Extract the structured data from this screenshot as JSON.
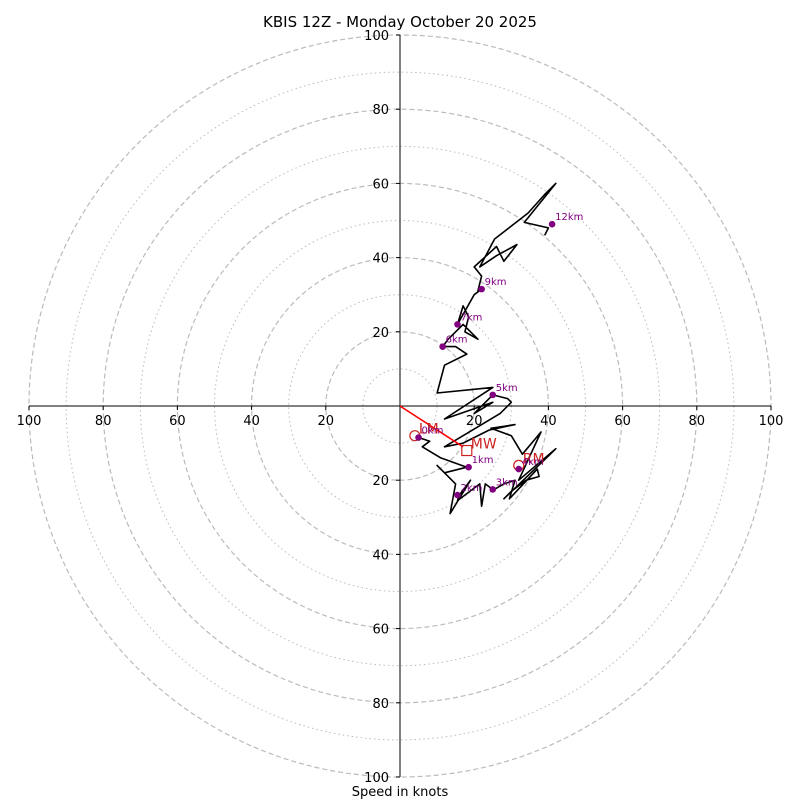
{
  "chart_data": {
    "type": "hodograph",
    "title": "KBIS 12Z - Monday October 20 2025",
    "xlabel": "Speed in knots",
    "units": "knots",
    "range": [
      -100,
      100
    ],
    "rings_major": [
      20,
      40,
      60,
      80,
      100
    ],
    "rings_minor": [
      10,
      30,
      50,
      70,
      90
    ],
    "x_ticks": [
      {
        "label": "100",
        "value": -100
      },
      {
        "label": "80",
        "value": -80
      },
      {
        "label": "60",
        "value": -60
      },
      {
        "label": "40",
        "value": -40
      },
      {
        "label": "20",
        "value": -20
      },
      {
        "label": "20",
        "value": 20
      },
      {
        "label": "40",
        "value": 40
      },
      {
        "label": "60",
        "value": 60
      },
      {
        "label": "80",
        "value": 80
      },
      {
        "label": "100",
        "value": 100
      }
    ],
    "y_ticks": [
      {
        "label": "100",
        "value": 100
      },
      {
        "label": "80",
        "value": 80
      },
      {
        "label": "60",
        "value": 60
      },
      {
        "label": "40",
        "value": 40
      },
      {
        "label": "20",
        "value": 20
      },
      {
        "label": "20",
        "value": -20
      },
      {
        "label": "40",
        "value": -40
      },
      {
        "label": "60",
        "value": -60
      },
      {
        "label": "80",
        "value": -80
      },
      {
        "label": "100",
        "value": -100
      }
    ],
    "colors": {
      "hodo": "#000000",
      "heights": "#800080",
      "motion": "#cc2222",
      "shear": "#ff0000",
      "grid": "#bbbbbb"
    },
    "hodograph": [
      [
        5,
        -8.5
      ],
      [
        8,
        -9.5
      ],
      [
        6,
        -11
      ],
      [
        11,
        -14
      ],
      [
        18,
        -16.5
      ],
      [
        12,
        -18
      ],
      [
        10,
        -16
      ],
      [
        15,
        -21
      ],
      [
        13.5,
        -29
      ],
      [
        19,
        -20
      ],
      [
        16,
        -24
      ],
      [
        15.5,
        -25.5
      ],
      [
        21.5,
        -21
      ],
      [
        22,
        -27
      ],
      [
        23,
        -21
      ],
      [
        25,
        -22.5
      ],
      [
        24.5,
        -23
      ],
      [
        28,
        -21
      ],
      [
        31,
        -20
      ],
      [
        29.5,
        -25
      ],
      [
        37,
        -17
      ],
      [
        37.5,
        -19
      ],
      [
        34,
        -20
      ],
      [
        30,
        -23
      ],
      [
        28,
        -25
      ],
      [
        40.5,
        -13
      ],
      [
        42,
        -11.5
      ],
      [
        32,
        -20
      ],
      [
        38,
        -7
      ],
      [
        33,
        -13
      ],
      [
        30,
        -8
      ],
      [
        24.5,
        -6
      ],
      [
        31,
        -5
      ],
      [
        24,
        -6.5
      ],
      [
        17,
        -10
      ],
      [
        12,
        -11
      ],
      [
        27,
        -2
      ],
      [
        30,
        1
      ],
      [
        29,
        2
      ],
      [
        25,
        3
      ],
      [
        20,
        -2
      ],
      [
        25,
        1
      ],
      [
        12,
        -3.5
      ],
      [
        25,
        5
      ],
      [
        10,
        3.5
      ],
      [
        12,
        11
      ],
      [
        18,
        14
      ],
      [
        15,
        16
      ],
      [
        11.5,
        16
      ],
      [
        13,
        18
      ],
      [
        17,
        22
      ],
      [
        18,
        21
      ],
      [
        21,
        18
      ],
      [
        17.5,
        20
      ],
      [
        18.5,
        24
      ],
      [
        17,
        27
      ],
      [
        15.5,
        22
      ],
      [
        20,
        30
      ],
      [
        22,
        31.5
      ],
      [
        21,
        31
      ],
      [
        22,
        35
      ],
      [
        20,
        37.5
      ],
      [
        26,
        43
      ],
      [
        28,
        39
      ],
      [
        31.5,
        43.5
      ],
      [
        26,
        40.5
      ],
      [
        21.5,
        37.5
      ],
      [
        25.5,
        45
      ],
      [
        34.5,
        52
      ],
      [
        39,
        57
      ],
      [
        42,
        60
      ],
      [
        33.5,
        49.5
      ],
      [
        40,
        48
      ],
      [
        39,
        46
      ]
    ],
    "height_markers": [
      {
        "label": "0km",
        "u": 5,
        "v": -8.5
      },
      {
        "label": "1km",
        "u": 18.5,
        "v": -16.5
      },
      {
        "label": "2km",
        "u": 15.5,
        "v": -24
      },
      {
        "label": "3km",
        "u": 25,
        "v": -22.5
      },
      {
        "label": "4km",
        "u": 32,
        "v": -17
      },
      {
        "label": "5km",
        "u": 25,
        "v": 3
      },
      {
        "label": "6km",
        "u": 11.5,
        "v": 16
      },
      {
        "label": "7km",
        "u": 15.5,
        "v": 22
      },
      {
        "label": "9km",
        "u": 22,
        "v": 31.5
      },
      {
        "label": "12km",
        "u": 41,
        "v": 49
      }
    ],
    "storm_motion": [
      {
        "label": "LM",
        "u": 4,
        "v": -8,
        "shape": "circle"
      },
      {
        "label": "RM",
        "u": 32,
        "v": -16,
        "shape": "circle"
      },
      {
        "label": "MW",
        "u": 18,
        "v": -12,
        "shape": "square"
      }
    ],
    "shear_vector": {
      "from": [
        0,
        0
      ],
      "to": [
        17,
        -11
      ]
    }
  }
}
